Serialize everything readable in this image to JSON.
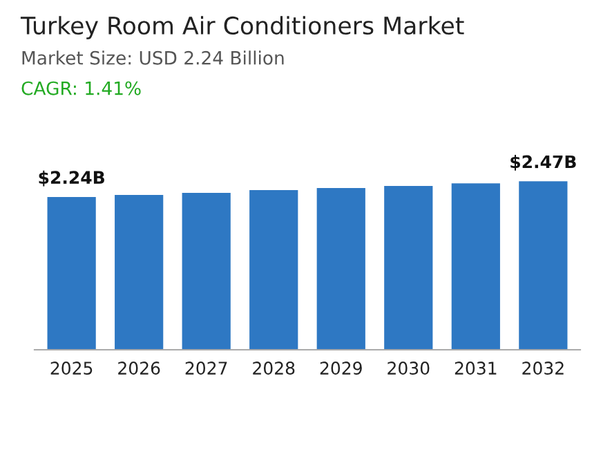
{
  "chart_data": {
    "type": "bar",
    "title": "Turkey Room Air Conditioners Market",
    "subtitle": "Market Size: USD 2.24 Billion",
    "annotations": [
      "CAGR: 1.41%"
    ],
    "categories": [
      "2025",
      "2026",
      "2027",
      "2028",
      "2029",
      "2030",
      "2031",
      "2032"
    ],
    "values": [
      2.24,
      2.27,
      2.3,
      2.34,
      2.37,
      2.4,
      2.44,
      2.47
    ],
    "value_labels": [
      "$2.24B",
      null,
      null,
      null,
      null,
      null,
      null,
      "$2.47B"
    ],
    "color": "#2e78c3",
    "tick_labels": "x",
    "grid": false,
    "legend": false
  }
}
